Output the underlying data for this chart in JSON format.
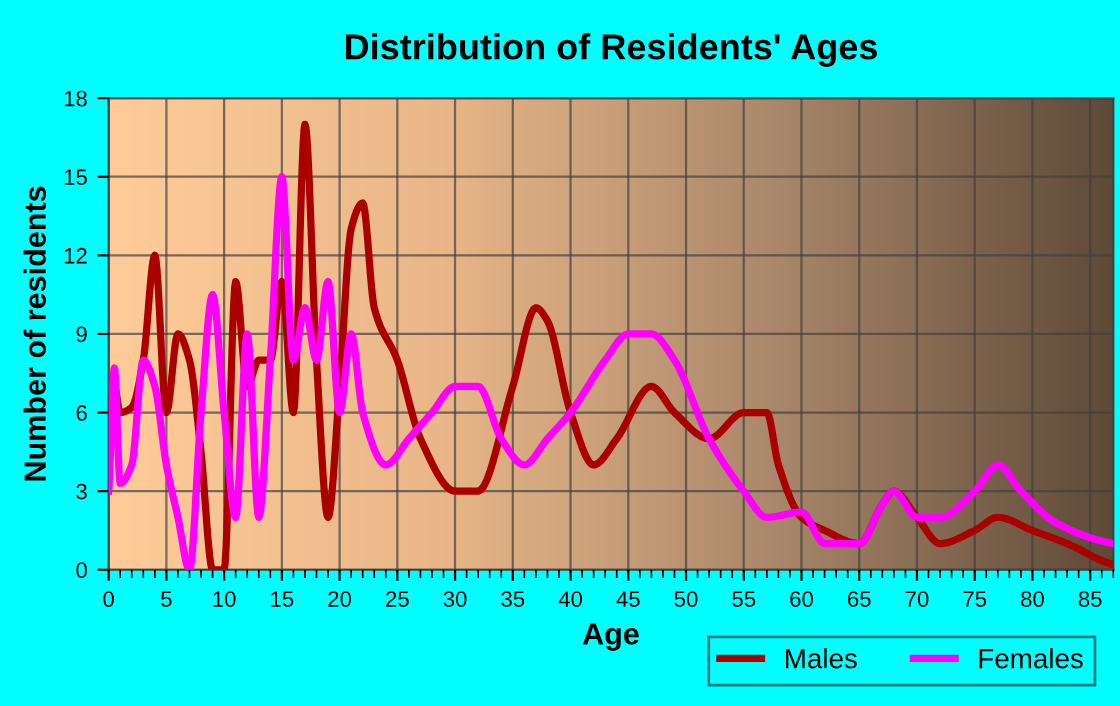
{
  "chart_data": {
    "type": "line",
    "title": "Distribution of Residents' Ages",
    "xlabel": "Age",
    "ylabel": "Number of residents",
    "xlim": [
      0,
      87
    ],
    "xticks": [
      0,
      5,
      10,
      15,
      20,
      25,
      30,
      35,
      40,
      45,
      50,
      55,
      60,
      65,
      70,
      75,
      80,
      85
    ],
    "ylim": [
      0,
      18
    ],
    "yticks": [
      0,
      3,
      6,
      9,
      12,
      15,
      18
    ],
    "grid": true,
    "legend": "bottom right",
    "marker": "none",
    "line_style": "solid",
    "series": [
      {
        "name": "Males",
        "color": "#aa0000",
        "x": [
          0,
          0.5,
          1,
          2,
          3,
          4,
          5,
          6,
          7,
          8,
          9,
          10,
          11,
          12,
          13,
          14,
          15,
          16,
          17,
          18,
          19,
          20,
          21,
          22,
          23,
          25,
          27,
          30,
          32,
          35,
          37,
          38,
          40,
          42,
          44,
          47,
          49,
          52,
          55,
          57,
          58,
          60,
          62,
          65,
          67,
          68,
          70,
          72,
          75,
          77,
          80,
          83,
          87
        ],
        "values": [
          6,
          7,
          6,
          6.2,
          8,
          12,
          6,
          9,
          8,
          4.5,
          0,
          0,
          11,
          7,
          8,
          8,
          11,
          6,
          17,
          8,
          2,
          7,
          13,
          14,
          10,
          8,
          5,
          3,
          3,
          7,
          10,
          9.5,
          6,
          4,
          5,
          7,
          6,
          5,
          6,
          6,
          4,
          2,
          1.5,
          1,
          2.5,
          3,
          2,
          1,
          1.5,
          2,
          1.5,
          1,
          0.2
        ]
      },
      {
        "name": "Females",
        "color": "#ff00ff",
        "x": [
          0,
          0.5,
          1,
          2,
          3,
          4,
          5,
          6,
          7,
          8,
          9,
          10,
          11,
          12,
          13,
          14,
          15,
          16,
          17,
          18,
          19,
          20,
          21,
          22,
          24,
          26,
          28,
          30,
          32,
          34,
          36,
          38,
          40,
          43,
          45,
          47,
          49,
          52,
          55,
          57,
          60,
          62,
          65,
          67,
          68,
          70,
          72,
          75,
          77,
          79,
          82,
          87
        ],
        "values": [
          3,
          7.7,
          3.3,
          4,
          8,
          7,
          4,
          2,
          0,
          6,
          10.5,
          6,
          2,
          9,
          2,
          8,
          15,
          8,
          10,
          8,
          11,
          6,
          9,
          6,
          4,
          5,
          6,
          7,
          7,
          5,
          4,
          5,
          6,
          8,
          9,
          9,
          8,
          5,
          3,
          2,
          2.2,
          1,
          1,
          2.5,
          3,
          2,
          2,
          3,
          4,
          3,
          1.8,
          1
        ]
      }
    ]
  }
}
